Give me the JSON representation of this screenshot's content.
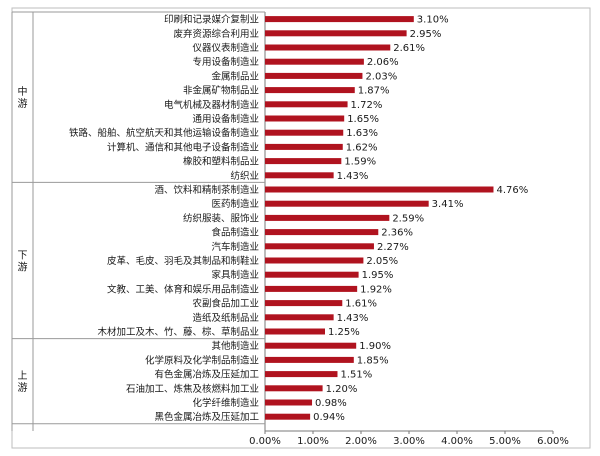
{
  "chart_data": {
    "type": "bar",
    "orientation": "horizontal",
    "color": "#B0131F",
    "value_suffix": "%",
    "xlim": [
      0,
      6
    ],
    "xticks": [
      "0.00%",
      "1.00%",
      "2.00%",
      "3.00%",
      "4.00%",
      "5.00%",
      "6.00%"
    ],
    "grid": false,
    "groups": [
      {
        "name": "中游",
        "categories": [
          "印刷和记录媒介复制业",
          "废弃资源综合利用业",
          "仪器仪表制造业",
          "专用设备制造业",
          "金属制品业",
          "非金属矿物制品业",
          "电气机械及器材制造业",
          "通用设备制造业",
          "铁路、船舶、航空航天和其他运输设备制造业",
          "计算机、通信和其他电子设备制造业",
          "橡胶和塑料制品业",
          "纺织业"
        ],
        "values": [
          3.1,
          2.95,
          2.61,
          2.06,
          2.03,
          1.87,
          1.72,
          1.65,
          1.63,
          1.62,
          1.59,
          1.43
        ],
        "labels": [
          "3.10%",
          "2.95%",
          "2.61%",
          "2.06%",
          "2.03%",
          "1.87%",
          "1.72%",
          "1.65%",
          "1.63%",
          "1.62%",
          "1.59%",
          "1.43%"
        ]
      },
      {
        "name": "下游",
        "categories": [
          "酒、饮料和精制茶制造业",
          "医药制造业",
          "纺织服装、服饰业",
          "食品制造业",
          "汽车制造业",
          "皮革、毛皮、羽毛及其制品和制鞋业",
          "家具制造业",
          "文教、工美、体育和娱乐用品制造业",
          "农副食品加工业",
          "造纸及纸制品业",
          "木材加工及木、竹、藤、棕、草制品业"
        ],
        "values": [
          4.76,
          3.41,
          2.59,
          2.36,
          2.27,
          2.05,
          1.95,
          1.92,
          1.61,
          1.43,
          1.25
        ],
        "labels": [
          "4.76%",
          "3.41%",
          "2.59%",
          "2.36%",
          "2.27%",
          "2.05%",
          "1.95%",
          "1.92%",
          "1.61%",
          "1.43%",
          "1.25%"
        ]
      },
      {
        "name": "上游",
        "categories": [
          "其他制造业",
          "化学原料及化学制品制造业",
          "有色金属冶炼及压延加工",
          "石油加工、炼焦及核燃料加工业",
          "化学纤维制造业",
          "黑色金属冶炼及压延加工"
        ],
        "values": [
          1.9,
          1.85,
          1.51,
          1.2,
          0.98,
          0.94
        ],
        "labels": [
          "1.90%",
          "1.85%",
          "1.51%",
          "1.20%",
          "0.98%",
          "0.94%"
        ]
      }
    ]
  }
}
